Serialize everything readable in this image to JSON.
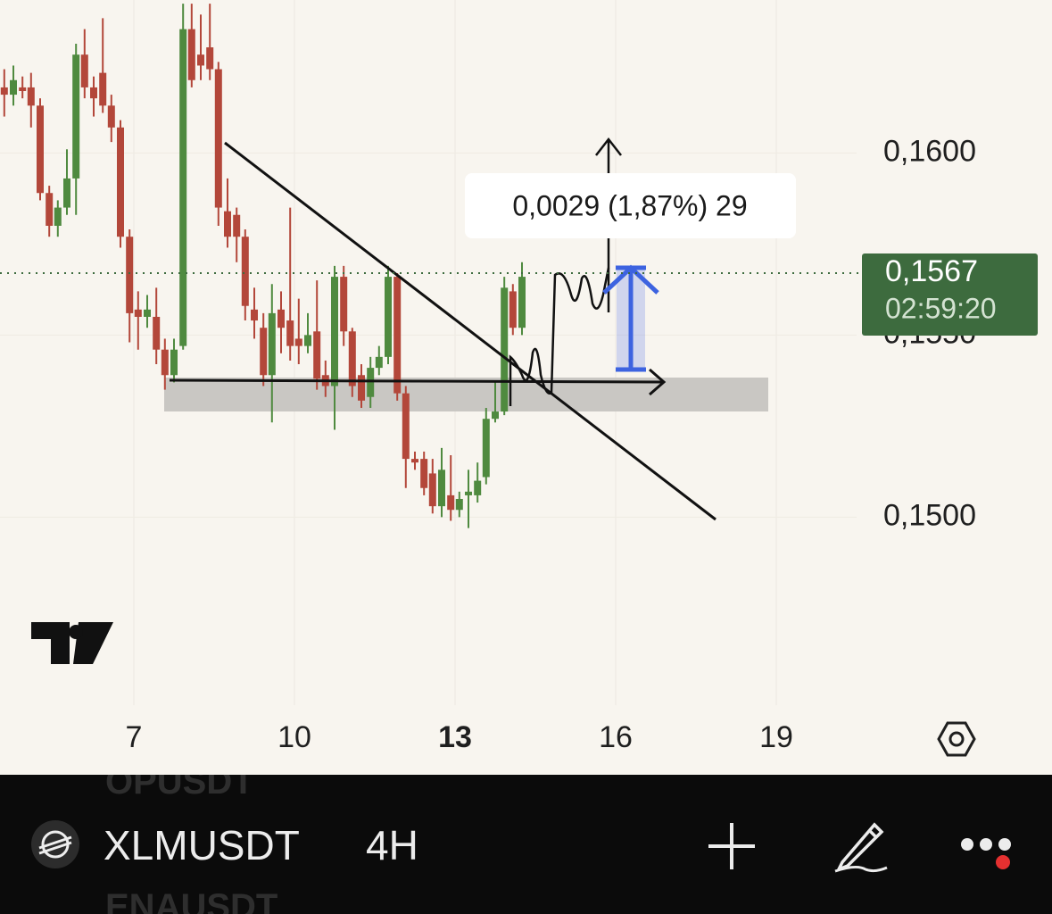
{
  "chart_data": {
    "type": "candlestick",
    "x": [
      4.58,
      4.75,
      4.92,
      5.08,
      5.25,
      5.42,
      5.58,
      5.75,
      5.92,
      6.08,
      6.25,
      6.42,
      6.58,
      6.75,
      6.92,
      7.08,
      7.25,
      7.42,
      7.58,
      7.75,
      7.92,
      8.08,
      8.25,
      8.42,
      8.58,
      8.75,
      8.92,
      9.08,
      9.25,
      9.42,
      9.58,
      9.75,
      9.92,
      10.08,
      10.25,
      10.42,
      10.58,
      10.75,
      10.92,
      11.08,
      11.25,
      11.42,
      11.58,
      11.75,
      11.92,
      12.08,
      12.25,
      12.42,
      12.58,
      12.75,
      12.92,
      13.08,
      13.25,
      13.42,
      13.58,
      13.75,
      13.92,
      14.08,
      14.25
    ],
    "open": [
      0.1618,
      0.1616,
      0.1618,
      0.1618,
      0.1613,
      0.1589,
      0.158,
      0.1585,
      0.1593,
      0.1627,
      0.1618,
      0.1622,
      0.1613,
      0.1607,
      0.1577,
      0.1557,
      0.1555,
      0.1555,
      0.1546,
      0.1539,
      0.1547,
      0.1634,
      0.1627,
      0.1629,
      0.1623,
      0.1584,
      0.1583,
      0.1577,
      0.1557,
      0.1552,
      0.1539,
      0.1557,
      0.1554,
      0.1549,
      0.1547,
      0.1551,
      0.1539,
      0.1536,
      0.1566,
      0.1551,
      0.1539,
      0.1533,
      0.1541,
      0.1544,
      0.1566,
      0.1534,
      0.1516,
      0.1516,
      0.1512,
      0.1503,
      0.1506,
      0.1502,
      0.1506,
      0.1506,
      0.1511,
      0.1527,
      0.1529,
      0.1562,
      0.1552
    ],
    "high": [
      0.1623,
      0.1624,
      0.1621,
      0.1622,
      0.1615,
      0.1591,
      0.1587,
      0.1601,
      0.163,
      0.1634,
      0.1621,
      0.1637,
      0.1616,
      0.1609,
      0.1579,
      0.1562,
      0.1561,
      0.1563,
      0.1549,
      0.1549,
      0.1641,
      0.1641,
      0.1638,
      0.1641,
      0.1625,
      0.1593,
      0.1585,
      0.1579,
      0.1563,
      0.1556,
      0.1564,
      0.1562,
      0.1585,
      0.156,
      0.1556,
      0.1565,
      0.1543,
      0.1569,
      0.1569,
      0.1552,
      0.1542,
      0.1544,
      0.1547,
      0.1569,
      0.1567,
      0.1536,
      0.1518,
      0.1518,
      0.1516,
      0.1519,
      0.1517,
      0.1507,
      0.1513,
      0.1515,
      0.153,
      0.1537,
      0.1566,
      0.1564,
      0.157
    ],
    "low": [
      0.161,
      0.1613,
      0.1615,
      0.1607,
      0.1587,
      0.1577,
      0.1577,
      0.1583,
      0.1583,
      0.1615,
      0.161,
      0.1611,
      0.1603,
      0.1574,
      0.1548,
      0.1546,
      0.1552,
      0.1542,
      0.1535,
      0.1537,
      0.1546,
      0.1618,
      0.162,
      0.162,
      0.158,
      0.1574,
      0.157,
      0.1554,
      0.1549,
      0.1536,
      0.1526,
      0.1545,
      0.1543,
      0.1542,
      0.1545,
      0.1535,
      0.1533,
      0.1524,
      0.1547,
      0.1533,
      0.153,
      0.153,
      0.1539,
      0.1542,
      0.1532,
      0.1508,
      0.1513,
      0.1506,
      0.1501,
      0.15,
      0.1499,
      0.15,
      0.1497,
      0.1504,
      0.1509,
      0.1526,
      0.1528,
      0.155,
      0.155
    ],
    "close": [
      0.1616,
      0.162,
      0.1617,
      0.1613,
      0.1589,
      0.158,
      0.1585,
      0.1593,
      0.1627,
      0.1618,
      0.1615,
      0.1613,
      0.1607,
      0.1577,
      0.1556,
      0.1555,
      0.1557,
      0.1546,
      0.1539,
      0.1546,
      0.1634,
      0.162,
      0.1624,
      0.1623,
      0.1585,
      0.1577,
      0.1577,
      0.1558,
      0.1554,
      0.1539,
      0.1556,
      0.1552,
      0.1547,
      0.1547,
      0.155,
      0.1538,
      0.1536,
      0.1566,
      0.1551,
      0.1536,
      0.1532,
      0.1541,
      0.1544,
      0.1566,
      0.1534,
      0.1516,
      0.1515,
      0.1508,
      0.1503,
      0.1513,
      0.1502,
      0.1505,
      0.1507,
      0.151,
      0.1527,
      0.1529,
      0.1563,
      0.1552,
      0.1566
    ],
    "up_color": "#4f8a3f",
    "down_color": "#b3473a",
    "xlim": [
      4.5,
      20.5
    ],
    "ylim": [
      0.143,
      0.1642
    ],
    "xticks": [
      7,
      10,
      13,
      16,
      19
    ],
    "yticks": [
      {
        "value": 0.15,
        "label": "0,1500"
      },
      {
        "value": 0.155,
        "label": "0,1550"
      },
      {
        "value": 0.16,
        "label": "0,1600"
      }
    ],
    "grid": true,
    "last_price": {
      "value": 0.1567,
      "label": "0,1567"
    },
    "countdown": "02:59:20",
    "annotation": "0,0029 (1,87%) 29"
  },
  "toolbar": {
    "symbol": "XLMUSDT",
    "interval": "4H",
    "list_above": "OPUSDT",
    "list_below": "ENAUSDT"
  }
}
